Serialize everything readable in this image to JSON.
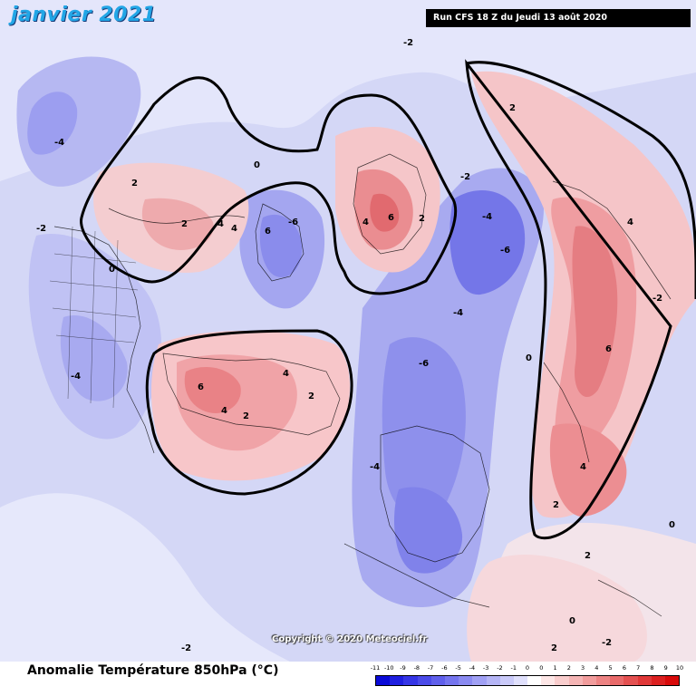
{
  "header": {
    "month_title": "janvier 2021",
    "run_info": "Run CFS 18 Z du Jeudi 13 août 2020"
  },
  "footer": {
    "title": "Anomalie Température 850hPa (°C)",
    "copyright": "Copyright © 2020 Meteociel.fr"
  },
  "legend": {
    "ticks": [
      "-11",
      "-10",
      "-9",
      "-8",
      "-7",
      "-6",
      "-5",
      "-4",
      "-3",
      "-2",
      "-1",
      "0",
      "0",
      "1",
      "2",
      "3",
      "4",
      "5",
      "6",
      "7",
      "8",
      "9",
      "10"
    ],
    "colors": [
      "#0a0ad8",
      "#1f1fe0",
      "#3535e6",
      "#4b4be9",
      "#6060ec",
      "#7575ef",
      "#8a8af1",
      "#a0a0f4",
      "#b5b5f6",
      "#cacaf9",
      "#e0e0fc",
      "#ffffff",
      "#fde6e6",
      "#f9cdcd",
      "#f5b5b5",
      "#f19c9c",
      "#ed8383",
      "#e96a6a",
      "#e45151",
      "#e03838",
      "#dc2020",
      "#d80a0a"
    ]
  },
  "contour_labels": [
    "-4",
    "-2",
    "0",
    "2",
    "4",
    "6",
    "-6",
    "2",
    "4",
    "-2",
    "0",
    "-4",
    "6",
    "4",
    "2",
    "-6",
    "-4",
    "-2",
    "0",
    "2",
    "4",
    "6",
    "4",
    "2",
    "-4",
    "-6",
    "-4",
    "-2",
    "2",
    "4",
    "6",
    "4",
    "2",
    "0",
    "-2",
    "2",
    "0",
    "2",
    "-2"
  ]
}
